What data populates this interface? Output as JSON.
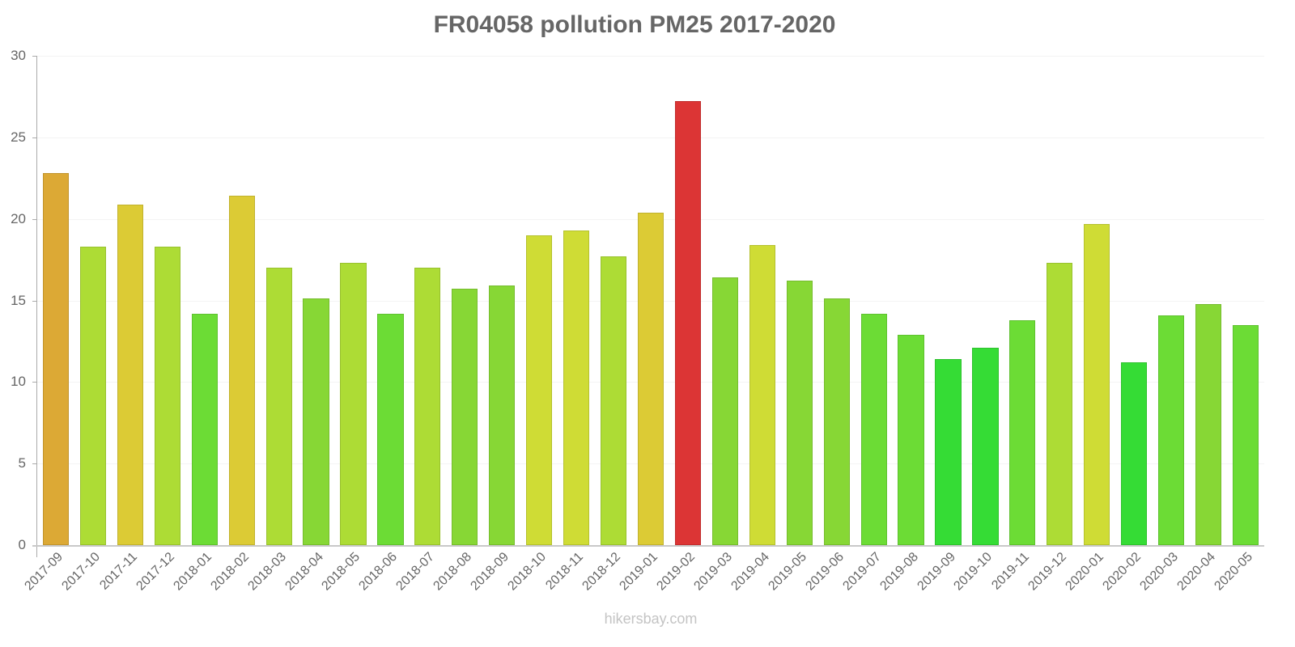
{
  "chart_data": {
    "type": "bar",
    "title": "FR04058 pollution PM25 2017-2020",
    "xlabel": "",
    "ylabel": "",
    "ylim": [
      0,
      30
    ],
    "yticks": [
      0,
      5,
      10,
      15,
      20,
      25,
      30
    ],
    "grid": true,
    "legend": null,
    "categories": [
      "2017-09",
      "2017-10",
      "2017-11",
      "2017-12",
      "2018-01",
      "2018-02",
      "2018-03",
      "2018-04",
      "2018-05",
      "2018-06",
      "2018-07",
      "2018-08",
      "2018-09",
      "2018-10",
      "2018-11",
      "2018-12",
      "2019-01",
      "2019-02",
      "2019-03",
      "2019-04",
      "2019-05",
      "2019-06",
      "2019-07",
      "2019-08",
      "2019-09",
      "2019-10",
      "2019-11",
      "2019-12",
      "2020-01",
      "2020-02",
      "2020-03",
      "2020-04",
      "2020-05"
    ],
    "values": [
      22.8,
      18.3,
      20.9,
      18.3,
      14.2,
      21.4,
      17.0,
      15.1,
      17.3,
      14.2,
      17.0,
      15.7,
      15.9,
      19.0,
      19.3,
      17.7,
      20.4,
      27.2,
      16.4,
      18.4,
      16.2,
      15.1,
      14.2,
      12.9,
      11.4,
      12.1,
      13.8,
      17.3,
      19.7,
      11.2,
      14.1,
      14.8,
      13.5
    ],
    "colors": [
      "#dca935",
      "#addc35",
      "#dccb35",
      "#addc35",
      "#6cdc35",
      "#dccb35",
      "#addc35",
      "#87d735",
      "#addc35",
      "#6cdc35",
      "#addc35",
      "#87d735",
      "#87d735",
      "#cfdc35",
      "#cfdc35",
      "#addc35",
      "#dccb35",
      "#dc3535",
      "#87d735",
      "#cfdc35",
      "#87d735",
      "#87d735",
      "#6cdc35",
      "#6cdc35",
      "#35dc35",
      "#35dc35",
      "#6cdc35",
      "#addc35",
      "#cfdc35",
      "#35dc35",
      "#6cdc35",
      "#87d735",
      "#6cdc35"
    ]
  },
  "credit": "hikersbay.com"
}
